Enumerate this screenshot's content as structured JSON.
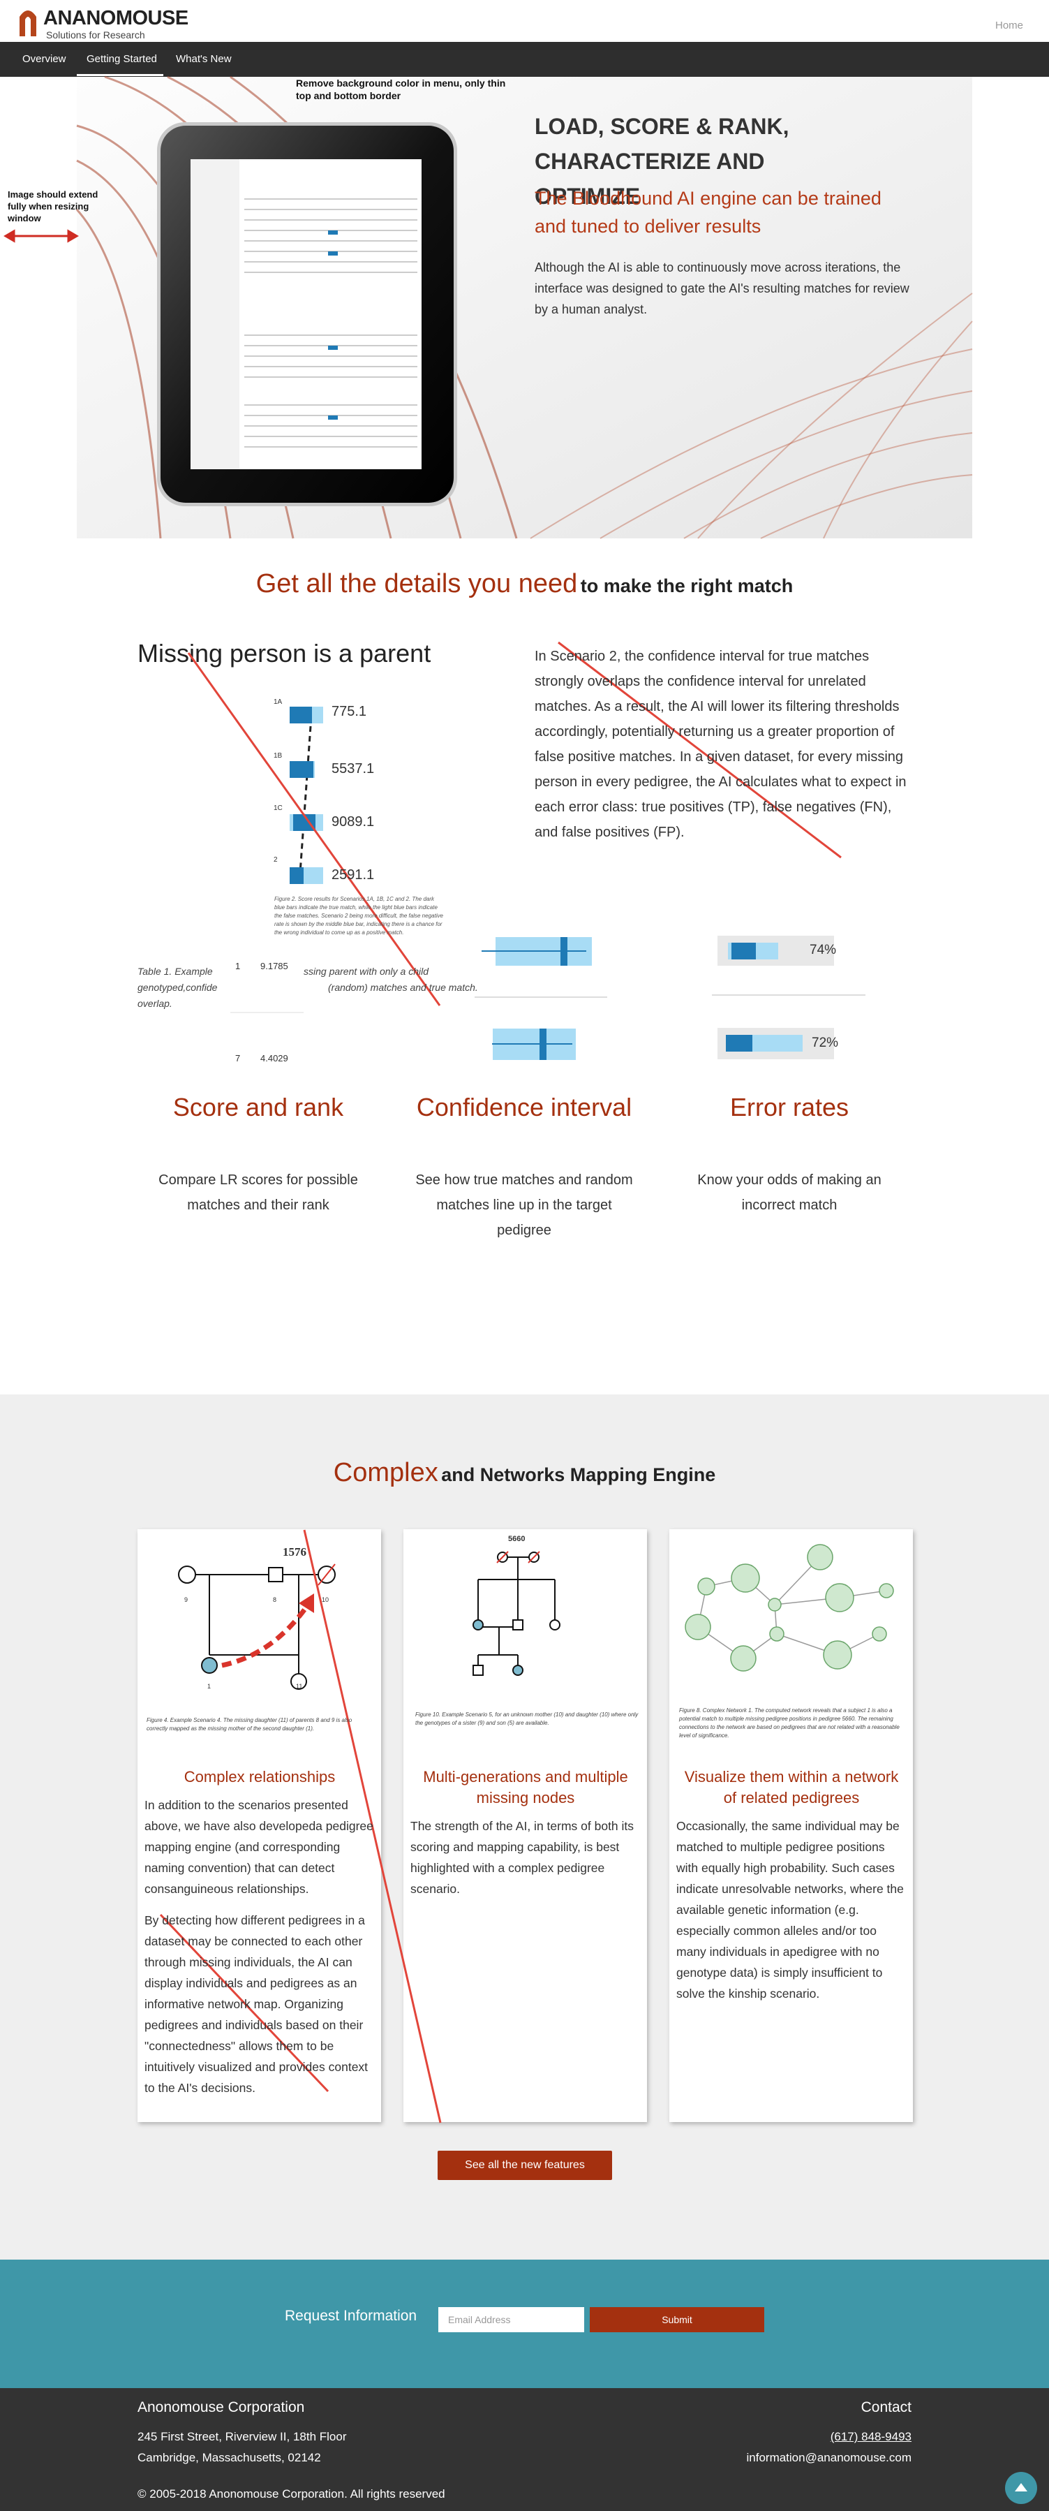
{
  "header": {
    "logo_name": "ANANOMOUSE",
    "logo_tagline": "Solutions for Research",
    "home": "Home"
  },
  "nav": [
    "Overview",
    "Getting Started",
    "What's New"
  ],
  "hero": {
    "title": "LOAD, SCORE & RANK, CHARACTERIZE AND OPTIMIZE",
    "subtitle": "The Bloodhound AI engine can be trained and tuned to deliver results",
    "body": "Although the AI is able to continuously move across iterations, the interface was designed to gate the AI's resulting matches for review by a human analyst.",
    "notes": [
      "Remove background color in menu, only thin top and bottom border",
      "Image should extend fully when resizing window"
    ]
  },
  "details": {
    "heading_accent": "Get all the details you need",
    "heading_rest": "to make the right match",
    "figure": {
      "title": "Missing person is a parent",
      "bars": [
        {
          "label": "1A",
          "value": "775.1"
        },
        {
          "label": "1B",
          "value": "5537.1"
        },
        {
          "label": "1C",
          "value": "9089.1"
        },
        {
          "label": "2",
          "value": "2591.1"
        }
      ],
      "caption": "Figure 2. Score results for Scenarios 1A, 1B, 1C and 2. The dark blue bars indicate the true match, while the light blue bars indicate the false matches. Scenario 2 being more difficult, the false negative rate is shown by the middle blue bar, indicating there is a chance for the wrong individual to come up as a positive match.",
      "table_caption": [
        "Table 1. Example",
        "genotyped,confide",
        "overlap."
      ],
      "table_note": [
        "ssing parent with only a child",
        "(random) matches and true match."
      ],
      "table_rows": [
        [
          "1",
          "9.1785"
        ],
        [
          "7",
          "4.4029"
        ]
      ]
    },
    "body": "In Scenario 2, the confidence interval for true matches strongly overlaps the confidence interval for unrelated matches. As a result, the AI will lower its filtering thresholds accordingly, potentially returning us a greater proportion of false positive matches. In a given dataset, for every missing person in every pedigree, the AI calculates what to expect in each error class: true positives (TP), false negatives (FN), and false positives (FP).",
    "error_rates": [
      "74%",
      "72%"
    ],
    "features": [
      {
        "title": "Score and rank",
        "text": "Compare LR scores for possible matches and their rank"
      },
      {
        "title": "Confidence interval",
        "text": "See how true matches and random matches line up in the target pedigree"
      },
      {
        "title": "Error rates",
        "text": "Know your odds of making an incorrect match"
      }
    ]
  },
  "network": {
    "heading_accent": "Complex",
    "heading_rest": "and Networks Mapping Engine",
    "cards": [
      {
        "figure_labels": [
          "1576",
          "9",
          "8",
          "10",
          "1",
          "11"
        ],
        "caption": "Figure 4. Example Scenario 4. The missing daughter (11) of parents 8 and 9 is also correctly mapped as the missing mother of the second daughter (1).",
        "title": "Complex relationships",
        "paragraphs": [
          "In addition to the scenarios presented above, we have also developeda pedigree mapping engine (and corresponding naming convention) that can detect consanguineous relationships.",
          "By detecting how different pedigrees in a dataset may be connected to each other through missing individuals, the AI can display individuals and pedigrees as an informative network map. Organizing pedigrees and individuals based on their \"connectedness\" allows them to be intuitively visualized and provides context to the AI's decisions."
        ]
      },
      {
        "figure_labels": [
          "5660"
        ],
        "caption": "Figure 10. Example Scenario 5, for an unknown mother (10) and daughter (10) where only the genotypes of a sister (9) and son (5) are available.",
        "title": "Multi-generations and multiple missing nodes",
        "paragraphs": [
          "The strength of the AI, in terms of both its scoring and mapping capability, is best highlighted with a complex pedigree scenario."
        ]
      },
      {
        "figure_labels": [],
        "caption": "Figure 8. Complex Network 1. The computed network reveals that a subject 1 is also a potential match to multiple missing pedigree positions in pedigree 5660. The remaining connections to the network are based on pedigrees that are not related with a reasonable level of significance.",
        "title": "Visualize them within a network of related pedigrees",
        "paragraphs": [
          "Occasionally, the same individual may be matched to multiple pedigree positions with equally high probability. Such cases indicate unresolvable networks, where the available genetic information (e.g. especially common alleles and/or too many individuals in apedigree with no genotype data) is simply insufficient to solve the kinship scenario."
        ]
      }
    ],
    "button": "See all the new features"
  },
  "request": {
    "label": "Request Information",
    "email_placeholder": "Email Address",
    "submit": "Submit"
  },
  "footer": {
    "company": "Anonomouse Corporation",
    "address": [
      "245 First Street, Riverview II, 18th Floor",
      "Cambridge, Massachusetts, 02142"
    ],
    "copyright": "© 2005-2018 Anonomouse Corporation. All rights reserved",
    "contact_heading": "Contact",
    "phone": "(617) 848-9493",
    "email": "information@ananomouse.com"
  }
}
